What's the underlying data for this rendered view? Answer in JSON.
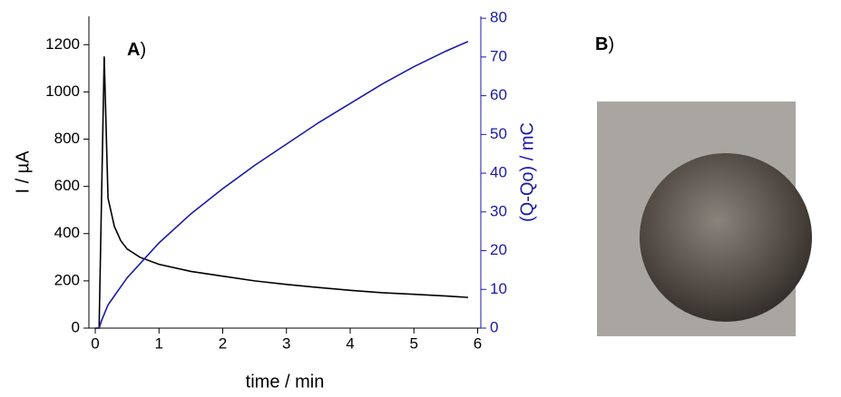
{
  "chart_data": {
    "type": "line",
    "panel_label": {
      "letter": "A",
      "paren": ")"
    },
    "xlabel": "time / min",
    "ylabel": "I / µA",
    "y2label": "(Q-Qo) / mC",
    "xlim": [
      -0.1,
      6.05
    ],
    "xticks": [
      0,
      1,
      2,
      3,
      4,
      5,
      6
    ],
    "ylim": [
      0,
      1320
    ],
    "yticks": [
      0,
      200,
      400,
      600,
      800,
      1000,
      1200
    ],
    "y2lim": [
      0,
      80.5
    ],
    "y2ticks": [
      0,
      10,
      20,
      30,
      40,
      50,
      60,
      70,
      80
    ],
    "y2color": "#1a1aa8",
    "series": [
      {
        "color": "#000000",
        "axis": "y",
        "x": [
          0,
          0.06,
          0.14,
          0.2,
          0.3,
          0.4,
          0.5,
          0.7,
          1.0,
          1.5,
          2.0,
          2.5,
          3.0,
          3.5,
          4.0,
          4.5,
          5.0,
          5.5,
          5.85
        ],
        "values": [
          0,
          0,
          1150,
          550,
          430,
          370,
          335,
          300,
          270,
          240,
          220,
          200,
          185,
          172,
          160,
          150,
          143,
          136,
          130
        ]
      },
      {
        "color": "#1a1aa8",
        "axis": "y2",
        "x": [
          0.06,
          0.1,
          0.2,
          0.5,
          1.0,
          1.5,
          2.0,
          2.5,
          3.0,
          3.5,
          4.0,
          4.5,
          5.0,
          5.5,
          5.85
        ],
        "values": [
          0,
          2,
          6,
          13,
          22,
          29.5,
          36,
          42,
          47.5,
          53,
          58,
          63,
          67.5,
          71.5,
          74
        ]
      }
    ]
  },
  "panel_b": {
    "letter": "B",
    "paren": ")"
  }
}
